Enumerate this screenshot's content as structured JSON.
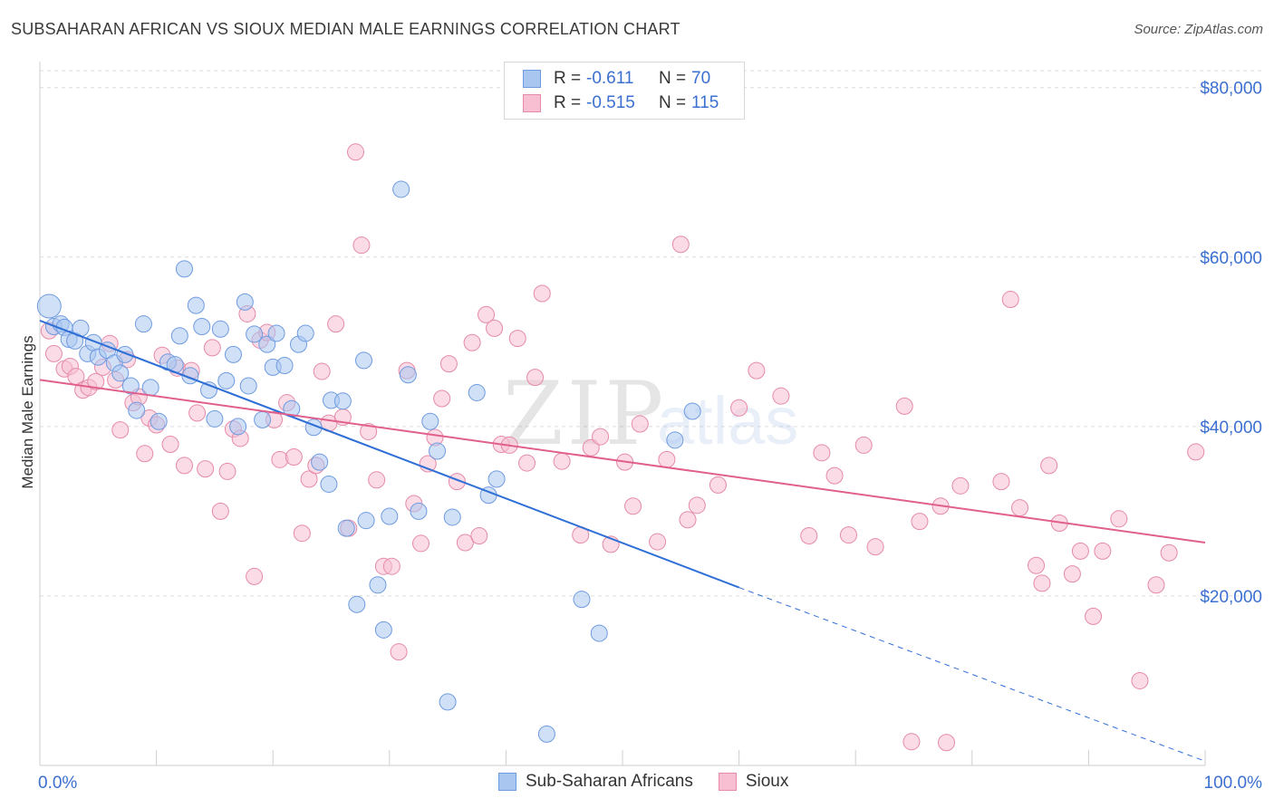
{
  "header": {
    "title": "SUBSAHARAN AFRICAN VS SIOUX MEDIAN MALE EARNINGS CORRELATION CHART",
    "source": "Source: ZipAtlas.com"
  },
  "watermark": {
    "zip": "ZIP",
    "atlas": "atlas"
  },
  "legend": {
    "rows": [
      {
        "r_label": "R =",
        "r_value": "-0.611",
        "n_label": "N =",
        "n_value": "70",
        "color": "#a9c6f0",
        "border": "#6f9be0"
      },
      {
        "r_label": "R =",
        "r_value": "-0.515",
        "n_label": "N =",
        "n_value": "115",
        "color": "#f7bfd1",
        "border": "#e58aa8"
      }
    ]
  },
  "bottom_legend": [
    {
      "label": "Sub-Saharan Africans",
      "color": "#a9c6f0",
      "border": "#6f9be0"
    },
    {
      "label": "Sioux",
      "color": "#f7bfd1",
      "border": "#e58aa8"
    }
  ],
  "chart_data": {
    "type": "scatter",
    "xlabel": "",
    "ylabel": "Median Male Earnings",
    "xlim": [
      0,
      100
    ],
    "ylim": [
      0,
      82000
    ],
    "x_tick_labels": [
      "0.0%",
      "100.0%"
    ],
    "y_ticks": [
      {
        "value": 20000,
        "label": "$20,000"
      },
      {
        "value": 40000,
        "label": "$40,000"
      },
      {
        "value": 60000,
        "label": "$60,000"
      },
      {
        "value": 80000,
        "label": "$80,000"
      }
    ],
    "grid": true,
    "legend_position": "top-center",
    "series": [
      {
        "name": "Sub-Saharan Africans",
        "color": "#6f9be0",
        "fill": "#a9c6f0",
        "trend": {
          "x0": 0,
          "y0": 52500,
          "x1": 60,
          "y1": 21000,
          "dash_to_x": 100,
          "dash_to_y": 500,
          "line_color": "#2f6fd6"
        },
        "points": [
          [
            0.8,
            54200
          ],
          [
            1.2,
            51800
          ],
          [
            1.8,
            52100
          ],
          [
            2.1,
            51700
          ],
          [
            2.5,
            50300
          ],
          [
            3,
            50100
          ],
          [
            3.5,
            51600
          ],
          [
            4.1,
            48600
          ],
          [
            4.6,
            49900
          ],
          [
            5,
            48200
          ],
          [
            5.8,
            49000
          ],
          [
            6.4,
            47500
          ],
          [
            6.9,
            46300
          ],
          [
            7.3,
            48500
          ],
          [
            7.8,
            44800
          ],
          [
            8.3,
            41900
          ],
          [
            8.9,
            52100
          ],
          [
            9.5,
            44600
          ],
          [
            10.2,
            40600
          ],
          [
            11,
            47600
          ],
          [
            11.6,
            47300
          ],
          [
            12,
            50700
          ],
          [
            12.4,
            58600
          ],
          [
            12.9,
            46000
          ],
          [
            13.4,
            54300
          ],
          [
            13.9,
            51800
          ],
          [
            14.5,
            44300
          ],
          [
            15,
            40900
          ],
          [
            15.5,
            51500
          ],
          [
            16,
            45400
          ],
          [
            16.6,
            48500
          ],
          [
            17,
            40000
          ],
          [
            17.6,
            54700
          ],
          [
            17.9,
            44800
          ],
          [
            18.4,
            50900
          ],
          [
            19.1,
            40800
          ],
          [
            19.5,
            49700
          ],
          [
            20,
            47000
          ],
          [
            20.3,
            51000
          ],
          [
            21,
            47200
          ],
          [
            21.6,
            42100
          ],
          [
            22.2,
            49700
          ],
          [
            22.8,
            51000
          ],
          [
            23.5,
            39900
          ],
          [
            24,
            35800
          ],
          [
            25,
            43100
          ],
          [
            26,
            43000
          ],
          [
            27.2,
            19000
          ],
          [
            27.8,
            47800
          ],
          [
            28,
            28900
          ],
          [
            29.5,
            16000
          ],
          [
            30,
            29400
          ],
          [
            31,
            68000
          ],
          [
            31.6,
            46100
          ],
          [
            32.5,
            30000
          ],
          [
            33.5,
            40600
          ],
          [
            34.1,
            37100
          ],
          [
            35,
            7500
          ],
          [
            35.4,
            29300
          ],
          [
            37.5,
            44000
          ],
          [
            38.5,
            31900
          ],
          [
            39.2,
            33800
          ],
          [
            43.5,
            3700
          ],
          [
            46.5,
            19600
          ],
          [
            48,
            15600
          ],
          [
            54.5,
            38400
          ],
          [
            56,
            41800
          ],
          [
            24.8,
            33200
          ],
          [
            26.3,
            28000
          ],
          [
            29,
            21300
          ]
        ]
      },
      {
        "name": "Sioux",
        "color": "#e58aa8",
        "fill": "#f7bfd1",
        "trend": {
          "x0": 0,
          "y0": 45500,
          "x1": 100,
          "y1": 26300,
          "line_color": "#e05f8c"
        },
        "points": [
          [
            0.8,
            51300
          ],
          [
            1.2,
            48600
          ],
          [
            2.1,
            46800
          ],
          [
            2.6,
            47100
          ],
          [
            3.1,
            45900
          ],
          [
            3.7,
            44300
          ],
          [
            4.2,
            44600
          ],
          [
            4.8,
            45300
          ],
          [
            5.4,
            47000
          ],
          [
            6,
            49800
          ],
          [
            6.5,
            45500
          ],
          [
            6.9,
            39600
          ],
          [
            7.5,
            47900
          ],
          [
            8,
            42800
          ],
          [
            8.5,
            43500
          ],
          [
            9,
            36800
          ],
          [
            9.4,
            41000
          ],
          [
            10,
            40200
          ],
          [
            10.5,
            48400
          ],
          [
            11.2,
            37900
          ],
          [
            11.8,
            46900
          ],
          [
            12.4,
            35400
          ],
          [
            13,
            46600
          ],
          [
            13.5,
            41600
          ],
          [
            14.2,
            35000
          ],
          [
            14.8,
            49300
          ],
          [
            15.5,
            30000
          ],
          [
            16.1,
            34700
          ],
          [
            16.6,
            39700
          ],
          [
            17.2,
            38600
          ],
          [
            17.8,
            53300
          ],
          [
            18.4,
            22300
          ],
          [
            18.9,
            50200
          ],
          [
            19.5,
            51100
          ],
          [
            20.1,
            40800
          ],
          [
            20.6,
            36100
          ],
          [
            21.2,
            42800
          ],
          [
            21.8,
            36400
          ],
          [
            22.5,
            27400
          ],
          [
            23.1,
            33800
          ],
          [
            23.7,
            35400
          ],
          [
            24.2,
            46500
          ],
          [
            24.8,
            40400
          ],
          [
            25.4,
            52100
          ],
          [
            26,
            41100
          ],
          [
            26.5,
            28000
          ],
          [
            27.1,
            72400
          ],
          [
            27.6,
            61400
          ],
          [
            28.2,
            39400
          ],
          [
            28.9,
            33700
          ],
          [
            29.5,
            23500
          ],
          [
            30.2,
            23500
          ],
          [
            30.8,
            13400
          ],
          [
            31.5,
            46600
          ],
          [
            32.1,
            30900
          ],
          [
            32.7,
            26200
          ],
          [
            33.3,
            35600
          ],
          [
            33.9,
            38700
          ],
          [
            34.5,
            43300
          ],
          [
            35.1,
            47400
          ],
          [
            35.8,
            33500
          ],
          [
            36.5,
            26300
          ],
          [
            37.1,
            49900
          ],
          [
            37.7,
            27100
          ],
          [
            38.3,
            53200
          ],
          [
            39,
            51600
          ],
          [
            39.6,
            37900
          ],
          [
            40.3,
            37800
          ],
          [
            41,
            50400
          ],
          [
            41.8,
            35700
          ],
          [
            42.5,
            45800
          ],
          [
            43.1,
            55700
          ],
          [
            44.8,
            35900
          ],
          [
            46.4,
            27200
          ],
          [
            47.3,
            37500
          ],
          [
            48.1,
            38800
          ],
          [
            49,
            26100
          ],
          [
            50.2,
            35800
          ],
          [
            50.9,
            30600
          ],
          [
            51.5,
            40300
          ],
          [
            53,
            26400
          ],
          [
            53.8,
            36100
          ],
          [
            55,
            61500
          ],
          [
            55.6,
            29000
          ],
          [
            56.4,
            30700
          ],
          [
            58.2,
            33100
          ],
          [
            60,
            42200
          ],
          [
            61.5,
            46600
          ],
          [
            63.6,
            43600
          ],
          [
            66,
            27100
          ],
          [
            67.1,
            36900
          ],
          [
            68.2,
            34200
          ],
          [
            69.4,
            27200
          ],
          [
            70.7,
            37800
          ],
          [
            71.7,
            25800
          ],
          [
            74.2,
            42400
          ],
          [
            75.5,
            28800
          ],
          [
            77.3,
            30600
          ],
          [
            77.8,
            2700
          ],
          [
            79,
            33000
          ],
          [
            82.5,
            33500
          ],
          [
            83.3,
            55000
          ],
          [
            84.1,
            30400
          ],
          [
            85.5,
            23600
          ],
          [
            86,
            21500
          ],
          [
            86.6,
            35400
          ],
          [
            87.5,
            28600
          ],
          [
            88.6,
            22600
          ],
          [
            89.3,
            25300
          ],
          [
            90.4,
            17600
          ],
          [
            91.2,
            25300
          ],
          [
            92.6,
            29100
          ],
          [
            94.4,
            10000
          ],
          [
            95.8,
            21300
          ],
          [
            96.9,
            25100
          ],
          [
            99.2,
            37000
          ],
          [
            74.8,
            2800
          ]
        ]
      }
    ]
  }
}
